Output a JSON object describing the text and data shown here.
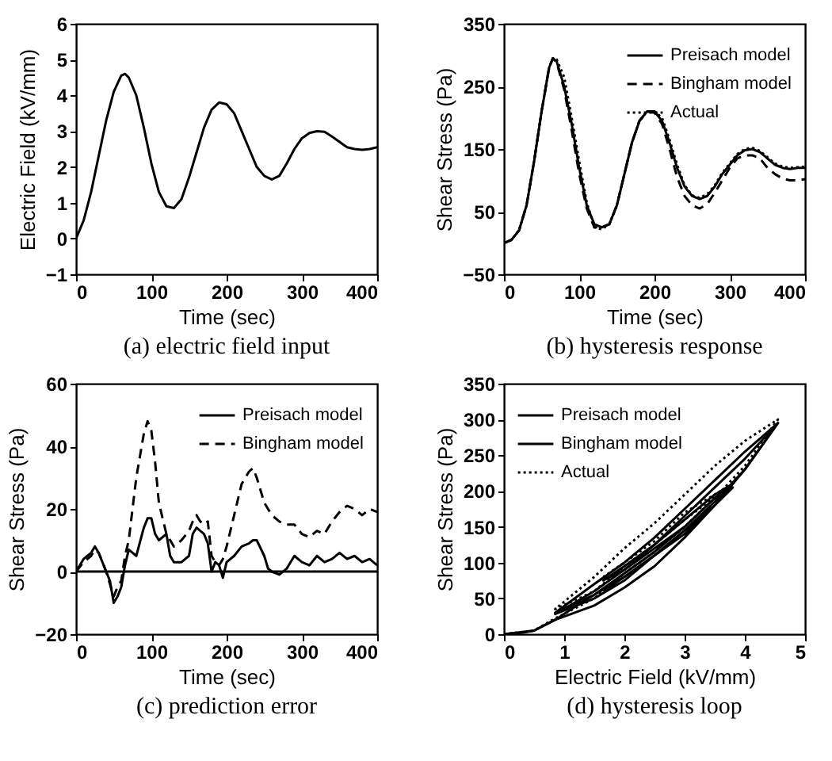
{
  "chart_data": [
    {
      "type": "line",
      "title": "(a) electric field input",
      "xlabel": "Time (sec)",
      "ylabel": "Electric Field (kV/mm)",
      "x": [
        0,
        10,
        20,
        30,
        40,
        50,
        60,
        65,
        70,
        80,
        90,
        100,
        110,
        120,
        130,
        140,
        150,
        160,
        170,
        180,
        190,
        200,
        210,
        220,
        230,
        240,
        250,
        260,
        270,
        280,
        290,
        300,
        310,
        320,
        330,
        340,
        350,
        360,
        370,
        380,
        390,
        400
      ],
      "values": [
        0,
        0.5,
        1.3,
        2.3,
        3.3,
        4.1,
        4.55,
        4.6,
        4.5,
        4.0,
        3.1,
        2.1,
        1.3,
        0.9,
        0.85,
        1.1,
        1.7,
        2.4,
        3.1,
        3.6,
        3.8,
        3.75,
        3.5,
        3.0,
        2.5,
        2.0,
        1.75,
        1.65,
        1.75,
        2.1,
        2.5,
        2.8,
        2.95,
        3.0,
        2.98,
        2.85,
        2.7,
        2.55,
        2.5,
        2.48,
        2.5,
        2.55
      ],
      "color": "#000000",
      "line_style": "solid",
      "xlim": [
        0,
        400
      ],
      "xticks": [
        0,
        100,
        200,
        300,
        400
      ],
      "ylim": [
        -1,
        6
      ],
      "yticks": [
        -1,
        0,
        1,
        2,
        3,
        4,
        5,
        6
      ]
    },
    {
      "type": "line",
      "title": "(b) hysteresis response",
      "xlabel": "Time (sec)",
      "ylabel": "Shear Stress (Pa)",
      "x": [
        0,
        10,
        20,
        30,
        40,
        50,
        60,
        65,
        70,
        80,
        90,
        100,
        110,
        120,
        130,
        140,
        150,
        160,
        170,
        180,
        190,
        200,
        210,
        220,
        230,
        240,
        250,
        260,
        270,
        280,
        290,
        300,
        310,
        320,
        330,
        340,
        350,
        360,
        370,
        380,
        390,
        400
      ],
      "series": [
        {
          "name": "Preisach model",
          "color": "#000000",
          "line_style": "solid",
          "values": [
            0,
            5,
            20,
            60,
            130,
            210,
            280,
            295,
            290,
            250,
            190,
            120,
            60,
            30,
            25,
            30,
            60,
            110,
            160,
            195,
            210,
            210,
            195,
            160,
            120,
            90,
            75,
            70,
            75,
            90,
            110,
            125,
            140,
            148,
            150,
            145,
            135,
            125,
            120,
            118,
            120,
            120
          ]
        },
        {
          "name": "Bingham model",
          "color": "#000000",
          "line_style": "dashed",
          "values": [
            0,
            5,
            20,
            60,
            130,
            210,
            280,
            295,
            288,
            245,
            180,
            110,
            55,
            25,
            25,
            30,
            60,
            110,
            160,
            195,
            210,
            208,
            190,
            150,
            105,
            75,
            60,
            55,
            62,
            80,
            100,
            120,
            135,
            140,
            140,
            135,
            120,
            110,
            103,
            100,
            100,
            102
          ]
        },
        {
          "name": "Actual",
          "color": "#000000",
          "line_style": "dotted",
          "values": [
            0,
            5,
            20,
            60,
            130,
            210,
            280,
            295,
            293,
            265,
            200,
            130,
            65,
            25,
            22,
            30,
            60,
            110,
            160,
            195,
            210,
            210,
            200,
            165,
            125,
            92,
            76,
            72,
            78,
            92,
            112,
            127,
            142,
            150,
            152,
            147,
            137,
            127,
            122,
            120,
            121,
            122
          ]
        }
      ],
      "legend": "top right",
      "xlim": [
        0,
        400
      ],
      "xticks": [
        0,
        100,
        200,
        300,
        400
      ],
      "ylim": [
        -50,
        350
      ],
      "yticks": [
        -50,
        50,
        150,
        250,
        350
      ]
    },
    {
      "type": "line",
      "title": "(c) prediction error",
      "xlabel": "Time (sec)",
      "ylabel": "Shear Stress (Pa)",
      "x": [
        0,
        10,
        20,
        25,
        30,
        40,
        45,
        50,
        55,
        60,
        65,
        70,
        80,
        90,
        95,
        100,
        105,
        110,
        120,
        125,
        130,
        140,
        150,
        155,
        160,
        165,
        170,
        175,
        180,
        185,
        190,
        195,
        200,
        210,
        220,
        230,
        235,
        240,
        250,
        255,
        260,
        270,
        280,
        290,
        300,
        310,
        320,
        330,
        340,
        350,
        360,
        370,
        380,
        390,
        400
      ],
      "series": [
        {
          "name": "Preisach model",
          "color": "#000000",
          "line_style": "solid",
          "values": [
            0,
            4,
            6,
            8,
            6,
            0,
            -3,
            -10,
            -8,
            -5,
            2,
            7,
            5,
            14,
            17,
            17,
            12,
            10,
            12,
            5,
            3,
            3,
            5,
            12,
            14,
            13,
            12,
            9,
            0,
            3,
            2,
            -2,
            3,
            5,
            8,
            9,
            10,
            10,
            5,
            1,
            0,
            -1,
            1,
            5,
            3,
            2,
            5,
            3,
            4,
            6,
            4,
            5,
            3,
            4,
            2
          ]
        },
        {
          "name": "Bingham model",
          "color": "#000000",
          "line_style": "dashed",
          "values": [
            0,
            3,
            5,
            7,
            6,
            0,
            -4,
            -8,
            -5,
            -3,
            5,
            10,
            30,
            44,
            48,
            45,
            35,
            22,
            12,
            10,
            8,
            10,
            13,
            16,
            18,
            16,
            15,
            16,
            5,
            3,
            2,
            4,
            8,
            18,
            28,
            32,
            33,
            30,
            22,
            20,
            18,
            16,
            15,
            15,
            12,
            11,
            13,
            12,
            16,
            19,
            21,
            20,
            18,
            20,
            19
          ]
        }
      ],
      "legend": "top right",
      "ref_lines": [
        {
          "axis": "y",
          "value": 0,
          "color": "#000000"
        }
      ],
      "xlim": [
        0,
        400
      ],
      "xticks": [
        0,
        100,
        200,
        300,
        400
      ],
      "ylim": [
        -20,
        60
      ],
      "yticks": [
        -20,
        0,
        20,
        40,
        60
      ]
    },
    {
      "type": "line",
      "title": "(d) hysteresis loop",
      "xlabel": "Electric Field (kV/mm)",
      "ylabel": "Shear Stress (Pa)",
      "series": [
        {
          "name": "Preisach model",
          "color": "#000000",
          "line_style": "solid",
          "x": [
            0,
            0.3,
            0.5,
            0.85,
            1.3,
            2,
            2.5,
            3,
            3.5,
            4,
            4.55,
            4,
            3.5,
            3,
            2.5,
            2,
            1.5,
            0.85,
            1.5,
            2,
            2.5,
            3,
            3.5,
            3.8,
            3.5,
            3,
            2.5,
            2,
            1.65,
            2,
            2.5,
            3
          ],
          "values": [
            0,
            2,
            5,
            20,
            45,
            80,
            110,
            145,
            185,
            230,
            295,
            255,
            215,
            175,
            135,
            100,
            70,
            30,
            55,
            85,
            115,
            150,
            190,
            210,
            195,
            160,
            125,
            95,
            75,
            90,
            120,
            150
          ]
        },
        {
          "name": "Bingham model",
          "color": "#000000",
          "line_style": "solid",
          "x": [
            0,
            0.5,
            0.85,
            1.5,
            2,
            2.5,
            3,
            3.5,
            4,
            4.55,
            4,
            3.5,
            3,
            2.5,
            2,
            1.5,
            0.85,
            1.5,
            2,
            2.5,
            3,
            3.5,
            3.8,
            3.5,
            3,
            2.5,
            2,
            1.65
          ],
          "values": [
            0,
            5,
            20,
            40,
            65,
            95,
            135,
            180,
            230,
            295,
            245,
            205,
            165,
            125,
            90,
            60,
            28,
            50,
            75,
            110,
            140,
            180,
            205,
            180,
            145,
            110,
            80,
            60
          ]
        },
        {
          "name": "Actual",
          "color": "#000000",
          "line_style": "dotted",
          "x": [
            0,
            0.5,
            0.85,
            1.5,
            2,
            2.5,
            3,
            3.5,
            4,
            4.55,
            4,
            3.5,
            3,
            2.5,
            2,
            1.5,
            0.85,
            1.5,
            2,
            2.5,
            3,
            3.8,
            3,
            2.5,
            2,
            1.65
          ],
          "values": [
            0,
            5,
            22,
            50,
            85,
            115,
            150,
            190,
            235,
            300,
            270,
            235,
            195,
            155,
            120,
            80,
            35,
            60,
            95,
            125,
            160,
            210,
            170,
            130,
            100,
            80
          ]
        }
      ],
      "legend": "top left",
      "xlim": [
        0,
        5
      ],
      "xticks": [
        0,
        1,
        2,
        3,
        4,
        5
      ],
      "ylim": [
        0,
        350
      ],
      "yticks": [
        0,
        50,
        100,
        150,
        200,
        250,
        300,
        350
      ]
    }
  ]
}
